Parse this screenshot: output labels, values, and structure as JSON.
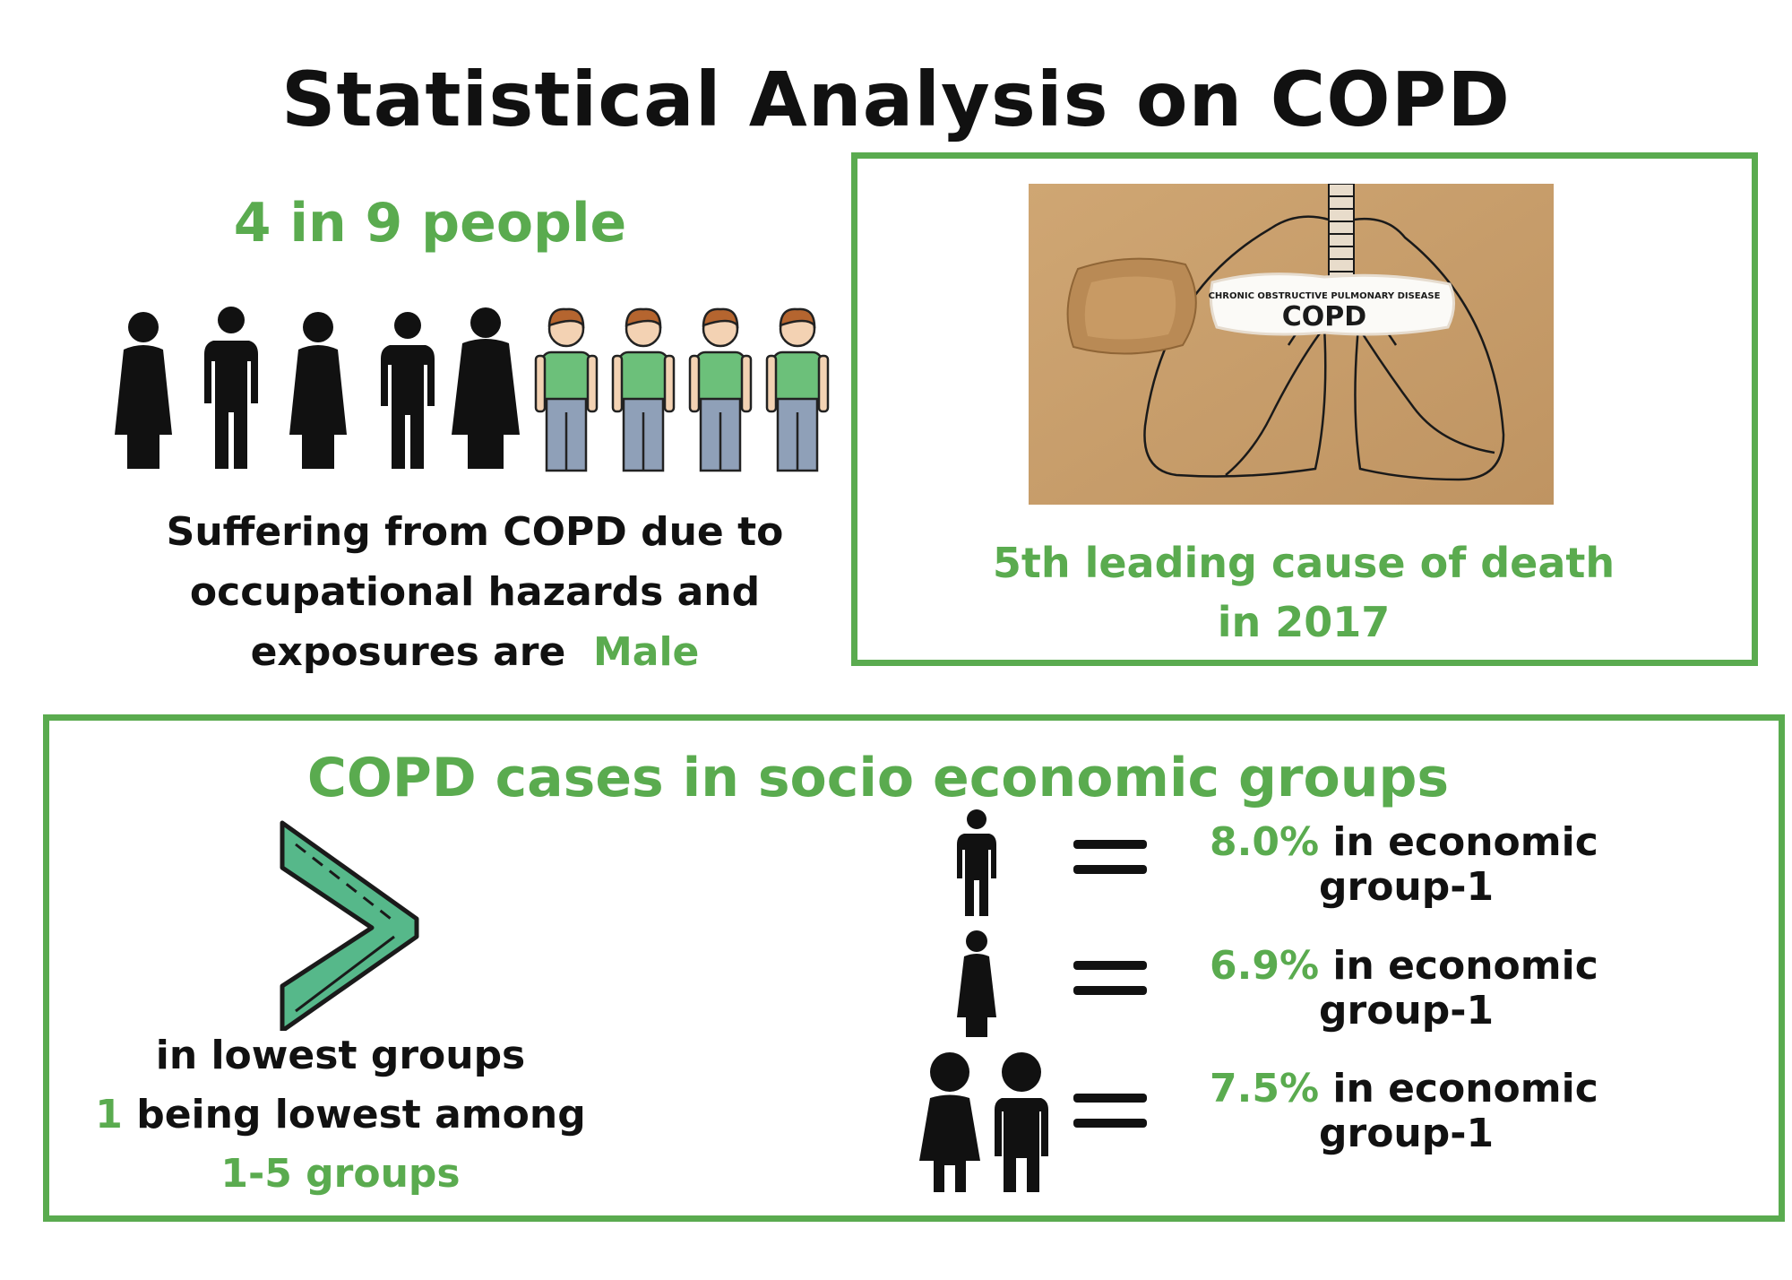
{
  "header": {
    "title": "Statistical Analysis on COPD"
  },
  "gender_panel": {
    "ratio_label": "4 in 9 people",
    "figures": [
      "woman",
      "man",
      "woman",
      "man",
      "woman",
      "male-worker",
      "male-worker",
      "male-worker",
      "male-worker"
    ],
    "caption_line1": "Suffering from COPD due to",
    "caption_line2": "occupational hazards and",
    "caption_line3_prefix": "exposures are",
    "caption_highlight": "Male"
  },
  "death_panel": {
    "image_subtitle": "CHRONIC OBSTRUCTIVE PULMONARY DISEASE",
    "image_title": "COPD",
    "caption_line1": "5th leading cause of death",
    "caption_line2": "in 2017"
  },
  "socio_panel": {
    "heading": "COPD cases in socio economic groups",
    "lowest_line1": "in lowest groups",
    "lowest_line2_num": "1",
    "lowest_line2_rest": "being lowest among",
    "lowest_line3": "1-5 groups",
    "stats": [
      {
        "icon": "man-icon",
        "percent": "8.0%",
        "text1": "in economic",
        "text2": "group-1"
      },
      {
        "icon": "woman-icon",
        "percent": "6.9%",
        "text1": "in economic",
        "text2": "group-1"
      },
      {
        "icon": "couple-icon",
        "percent": "7.5%",
        "text1": "in economic",
        "text2": "group-1"
      }
    ]
  },
  "colors": {
    "accent": "#5aab4f",
    "text": "#111111",
    "cardboard": "#c79c68",
    "shirt": "#6cc07a",
    "pants": "#8fa0b8"
  }
}
